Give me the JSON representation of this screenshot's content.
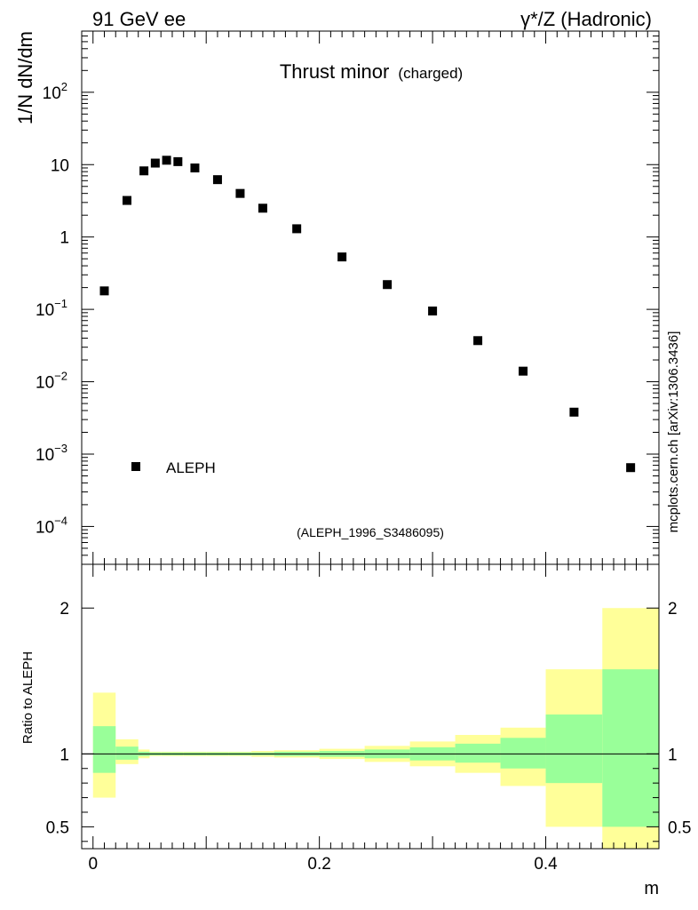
{
  "header": {
    "left": "91 GeV ee",
    "right": "γ*/Z (Hadronic)"
  },
  "side_label": "mcplots.cern.ch [arXiv:1306.3436]",
  "chart_data": [
    {
      "type": "scatter",
      "panel": "main",
      "title": "Thrust minor",
      "subtitle": "(charged)",
      "ylabel": "1/N dN/dm",
      "yscale": "log",
      "ylim": [
        3e-05,
        700
      ],
      "xlim": [
        -0.01,
        0.5
      ],
      "yticks": [
        {
          "value": 0.0001,
          "label": "10",
          "exp": "−4"
        },
        {
          "value": 0.001,
          "label": "10",
          "exp": "−3"
        },
        {
          "value": 0.01,
          "label": "10",
          "exp": "−2"
        },
        {
          "value": 0.1,
          "label": "10",
          "exp": "−1"
        },
        {
          "value": 1,
          "label": "1",
          "exp": ""
        },
        {
          "value": 10,
          "label": "10",
          "exp": ""
        },
        {
          "value": 100,
          "label": "10",
          "exp": "2"
        }
      ],
      "annotation": "(ALEPH_1996_S3486095)",
      "legend": {
        "label": "ALEPH",
        "placement": "bottom-left"
      },
      "series": [
        {
          "name": "ALEPH",
          "x": [
            0.01,
            0.03,
            0.045,
            0.055,
            0.065,
            0.075,
            0.09,
            0.11,
            0.13,
            0.15,
            0.18,
            0.22,
            0.26,
            0.3,
            0.34,
            0.38,
            0.425,
            0.475
          ],
          "y": [
            0.18,
            3.2,
            8.2,
            10.5,
            11.5,
            11.0,
            9.0,
            6.2,
            4.0,
            2.5,
            1.3,
            0.53,
            0.22,
            0.095,
            0.037,
            0.014,
            0.0038,
            0.00065
          ]
        }
      ]
    },
    {
      "type": "area",
      "panel": "ratio",
      "xlabel": "m",
      "ylabel": "Ratio to ALEPH",
      "xlim": [
        -0.01,
        0.5
      ],
      "ylim": [
        0.35,
        2.3
      ],
      "xticks": [
        {
          "value": 0,
          "label": "0"
        },
        {
          "value": 0.2,
          "label": "0.2"
        },
        {
          "value": 0.4,
          "label": "0.4"
        }
      ],
      "yticks": [
        {
          "value": 0.5,
          "label": "0.5"
        },
        {
          "value": 1,
          "label": "1"
        },
        {
          "value": 2,
          "label": "2"
        }
      ],
      "reference_line": 1,
      "bins": [
        {
          "lo": 0.0,
          "hi": 0.02,
          "stat": [
            0.87,
            1.19
          ],
          "total": [
            0.7,
            1.42
          ]
        },
        {
          "lo": 0.02,
          "hi": 0.04,
          "stat": [
            0.96,
            1.05
          ],
          "total": [
            0.93,
            1.1
          ]
        },
        {
          "lo": 0.04,
          "hi": 0.05,
          "stat": [
            0.985,
            1.015
          ],
          "total": [
            0.97,
            1.03
          ]
        },
        {
          "lo": 0.05,
          "hi": 0.06,
          "stat": [
            0.99,
            1.01
          ],
          "total": [
            0.985,
            1.015
          ]
        },
        {
          "lo": 0.06,
          "hi": 0.07,
          "stat": [
            0.99,
            1.01
          ],
          "total": [
            0.985,
            1.015
          ]
        },
        {
          "lo": 0.07,
          "hi": 0.08,
          "stat": [
            0.99,
            1.01
          ],
          "total": [
            0.985,
            1.015
          ]
        },
        {
          "lo": 0.08,
          "hi": 0.1,
          "stat": [
            0.99,
            1.01
          ],
          "total": [
            0.985,
            1.015
          ]
        },
        {
          "lo": 0.1,
          "hi": 0.12,
          "stat": [
            0.99,
            1.01
          ],
          "total": [
            0.985,
            1.015
          ]
        },
        {
          "lo": 0.12,
          "hi": 0.14,
          "stat": [
            0.99,
            1.01
          ],
          "total": [
            0.985,
            1.015
          ]
        },
        {
          "lo": 0.14,
          "hi": 0.16,
          "stat": [
            0.99,
            1.01
          ],
          "total": [
            0.98,
            1.02
          ]
        },
        {
          "lo": 0.16,
          "hi": 0.2,
          "stat": [
            0.985,
            1.015
          ],
          "total": [
            0.975,
            1.025
          ]
        },
        {
          "lo": 0.2,
          "hi": 0.24,
          "stat": [
            0.98,
            1.02
          ],
          "total": [
            0.965,
            1.035
          ]
        },
        {
          "lo": 0.24,
          "hi": 0.28,
          "stat": [
            0.97,
            1.03
          ],
          "total": [
            0.945,
            1.055
          ]
        },
        {
          "lo": 0.28,
          "hi": 0.32,
          "stat": [
            0.955,
            1.045
          ],
          "total": [
            0.915,
            1.085
          ]
        },
        {
          "lo": 0.32,
          "hi": 0.36,
          "stat": [
            0.94,
            1.07
          ],
          "total": [
            0.87,
            1.13
          ]
        },
        {
          "lo": 0.36,
          "hi": 0.4,
          "stat": [
            0.9,
            1.11
          ],
          "total": [
            0.78,
            1.18
          ]
        },
        {
          "lo": 0.4,
          "hi": 0.45,
          "stat": [
            0.8,
            1.27
          ],
          "total": [
            0.5,
            1.58
          ]
        },
        {
          "lo": 0.45,
          "hi": 0.5,
          "stat": [
            0.5,
            1.58
          ],
          "total": [
            0.35,
            2.0
          ]
        }
      ],
      "colors": {
        "stat": "#99ff99",
        "total": "#ffff99"
      }
    }
  ]
}
